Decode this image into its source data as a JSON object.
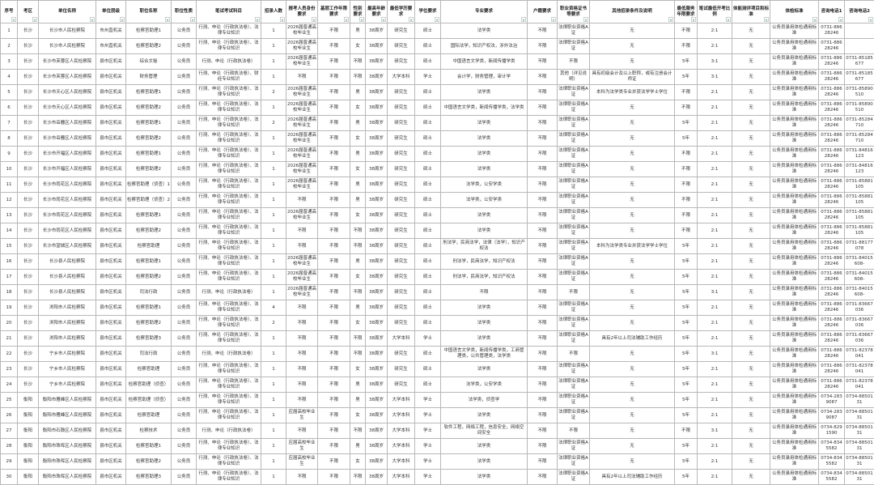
{
  "headers": [
    "序号",
    "考区",
    "单位名称",
    "单位层级",
    "职位名称",
    "职位性质",
    "笔试考试科目",
    "招录人数",
    "报考人员身份要求",
    "基层工作年限要求",
    "性别要求",
    "最高年龄要求",
    "最低学历要求",
    "学位要求",
    "专业要求",
    "户籍要求",
    "职业资格证书等要求",
    "其他招录条件及说明",
    "最低服务年限要求",
    "笔试最低开考比例",
    "体能测评项目和标准",
    "体检标准",
    "咨询电话1",
    "咨询电话2"
  ],
  "filter_icon": "filter-dropdown-arrow",
  "accent_color": "#2e9e5b",
  "rows": [
    [
      "1",
      "长沙",
      "长沙市人民检察院",
      "市州直机关",
      "检察官助理1",
      "公务员",
      "行测、申论（行政执法卷）、法律专业知识",
      "1",
      "2026届普通高校毕业生",
      "不限",
      "男",
      "38周岁",
      "研究生",
      "硕士",
      "法学类",
      "不限",
      "法律职业资格A证",
      "无",
      "不限",
      "2:1",
      "无",
      "公务员录用体检通用标准",
      "0731-88628246",
      ""
    ],
    [
      "2",
      "长沙",
      "长沙市人民检察院",
      "市州直机关",
      "检察官助理2",
      "公务员",
      "行测、申论（行政执法卷）、法律专业知识",
      "1",
      "2026届普通高校毕业生",
      "不限",
      "女",
      "38周岁",
      "研究生",
      "硕士",
      "国际法学，知识产权法，涉外法治",
      "不限",
      "法律职业资格A证",
      "无",
      "不限",
      "2:1",
      "无",
      "公务员录用体检通用标准",
      "0731-88628246",
      ""
    ],
    [
      "3",
      "长沙",
      "长沙市芙蓉区人民检察院",
      "县市区机关",
      "综合文秘",
      "公务员",
      "行测、申论（行政执法卷）",
      "1",
      "2026届普通高校毕业生",
      "不限",
      "不限",
      "38周岁",
      "研究生",
      "硕士",
      "中国语言文学类，新闻传播学类",
      "不限",
      "不限",
      "无",
      "5年",
      "3:1",
      "无",
      "公务员录用体检通用标准",
      "0731-88628246",
      "0731-85185677"
    ],
    [
      "4",
      "长沙",
      "长沙市芙蓉区人民检察院",
      "县市区机关",
      "财务管理",
      "公务员",
      "行测、申论（行政执法卷）、财经专业知识",
      "1",
      "不限",
      "不限",
      "不限",
      "38周岁",
      "大学本科",
      "学士",
      "会计学，财务管理，审计学",
      "不限",
      "其他（详见说明）",
      "具有初级会计及以上职称，或有注册会计师证",
      "5年",
      "3:1",
      "无",
      "公务员录用体检通用标准",
      "0731-88628246",
      "0731-85185677"
    ],
    [
      "5",
      "长沙",
      "长沙市天心区人民检察院",
      "县市区机关",
      "检察官助理1",
      "公务员",
      "行测、申论（行政执法卷）、法律专业知识",
      "2",
      "2026届普通高校毕业生",
      "不限",
      "男",
      "38周岁",
      "研究生",
      "硕士",
      "法学类",
      "不限",
      "法律职业资格A证",
      "本科为法学类专业并获法学学士学位",
      "不限",
      "2:1",
      "无",
      "公务员录用体检通用标准",
      "0731-88628246",
      "0731-85890510"
    ],
    [
      "6",
      "长沙",
      "长沙市天心区人民检察院",
      "县市区机关",
      "检察官助理2",
      "公务员",
      "行测、申论（行政执法卷）、法律专业知识",
      "1",
      "2026届普通高校毕业生",
      "不限",
      "女",
      "38周岁",
      "研究生",
      "硕士",
      "中国语言文学类，新闻传播学类，法学类",
      "不限",
      "法律职业资格A证",
      "无",
      "不限",
      "2:1",
      "无",
      "公务员录用体检通用标准",
      "0731-88628246",
      "0731-85890510"
    ],
    [
      "7",
      "长沙",
      "长沙市岳麓区人民检察院",
      "县市区机关",
      "检察官助理1",
      "公务员",
      "行测、申论（行政执法卷）、法律专业知识",
      "2",
      "2026届普通高校毕业生",
      "不限",
      "男",
      "38周岁",
      "研究生",
      "硕士",
      "法学类",
      "不限",
      "法律职业资格A证",
      "无",
      "5年",
      "2:1",
      "无",
      "公务员录用体检通用标准",
      "0731-88628246",
      "0731-85284710"
    ],
    [
      "8",
      "长沙",
      "长沙市岳麓区人民检察院",
      "县市区机关",
      "检察官助理2",
      "公务员",
      "行测、申论（行政执法卷）、法律专业知识",
      "1",
      "2026届普通高校毕业生",
      "不限",
      "女",
      "38周岁",
      "研究生",
      "硕士",
      "法学类",
      "不限",
      "法律职业资格A证",
      "无",
      "5年",
      "2:1",
      "无",
      "公务员录用体检通用标准",
      "0731-88628246",
      "0731-85284710"
    ],
    [
      "9",
      "长沙",
      "长沙市开福区人民检察院",
      "县市区机关",
      "检察官助理1",
      "公务员",
      "行测、申论（行政执法卷）、法律专业知识",
      "1",
      "2026届普通高校毕业生",
      "不限",
      "男",
      "38周岁",
      "研究生",
      "硕士",
      "法学类",
      "不限",
      "法律职业资格A证",
      "无",
      "不限",
      "2:1",
      "无",
      "公务员录用体检通用标准",
      "0731-88628246",
      "0731-84816123"
    ],
    [
      "10",
      "长沙",
      "长沙市开福区人民检察院",
      "县市区机关",
      "检察官助理2",
      "公务员",
      "行测、申论（行政执法卷）、法律专业知识",
      "1",
      "2026届普通高校毕业生",
      "不限",
      "女",
      "38周岁",
      "研究生",
      "硕士",
      "法学类",
      "不限",
      "法律职业资格A证",
      "无",
      "不限",
      "2:1",
      "无",
      "公务员录用体检通用标准",
      "0731-88628246",
      "0731-84816123"
    ],
    [
      "11",
      "长沙",
      "长沙市雨花区人民检察院",
      "县市区机关",
      "检察官助理（侦查）1",
      "公务员",
      "行测、申论（行政执法卷）、法律专业知识",
      "1",
      "2026届普通高校毕业生",
      "不限",
      "男",
      "38周岁",
      "研究生",
      "硕士",
      "法学类，公安学类",
      "不限",
      "法律职业资格A证",
      "无",
      "不限",
      "2:1",
      "无",
      "公务员录用体检通用标准",
      "0731-88628246",
      "0731-85881105"
    ],
    [
      "12",
      "长沙",
      "长沙市雨花区人民检察院",
      "县市区机关",
      "检察官助理（侦查）2",
      "公务员",
      "行测、申论（行政执法卷）、法律专业知识",
      "1",
      "不限",
      "不限",
      "男",
      "38周岁",
      "研究生",
      "硕士",
      "法学类，公安学类",
      "不限",
      "法律职业资格A证",
      "无",
      "不限",
      "2:1",
      "无",
      "公务员录用体检通用标准",
      "0731-88628246",
      "0731-85881105"
    ],
    [
      "13",
      "长沙",
      "长沙市雨花区人民检察院",
      "县市区机关",
      "检察官助理1",
      "公务员",
      "行测、申论（行政执法卷）、法律专业知识",
      "1",
      "2026届普通高校毕业生",
      "不限",
      "女",
      "38周岁",
      "研究生",
      "硕士",
      "法学类",
      "不限",
      "法律职业资格A证",
      "无",
      "不限",
      "2:1",
      "无",
      "公务员录用体检通用标准",
      "0731-88628246",
      "0731-85881105"
    ],
    [
      "14",
      "长沙",
      "长沙市雨花区人民检察院",
      "县市区机关",
      "检察官助理2",
      "公务员",
      "行测、申论（行政执法卷）、法律专业知识",
      "1",
      "不限",
      "不限",
      "不限",
      "38周岁",
      "研究生",
      "硕士",
      "法学类",
      "不限",
      "法律职业资格A证",
      "无",
      "不限",
      "2:1",
      "无",
      "公务员录用体检通用标准",
      "0731-88628246",
      "0731-85881105"
    ],
    [
      "15",
      "长沙",
      "长沙市望城区人民检察院",
      "县市区机关",
      "检察官助理",
      "公务员",
      "行测、申论（行政执法卷）、法律专业知识",
      "1",
      "不限",
      "不限",
      "不限",
      "38周岁",
      "研究生",
      "硕士",
      "刑法学，民商法学，法律（法学），知识产权法",
      "不限",
      "法律职业资格A证",
      "本科为法学类专业并获法学学士学位",
      "5年",
      "2:1",
      "无",
      "公务员录用体检通用标准",
      "0731-88628246",
      "0731-88177078"
    ],
    [
      "16",
      "长沙",
      "长沙县人民检察院",
      "县市区机关",
      "检察官助理1",
      "公务员",
      "行测、申论（行政执法卷）、法律专业知识",
      "1",
      "2026届普通高校毕业生",
      "不限",
      "男",
      "38周岁",
      "研究生",
      "硕士",
      "刑法学，民商法学，知识产权法",
      "不限",
      "法律职业资格A证",
      "无",
      "5年",
      "2:1",
      "无",
      "公务员录用体检通用标准",
      "0731-88628246",
      "0731-84015608-"
    ],
    [
      "17",
      "长沙",
      "长沙县人民检察院",
      "县市区机关",
      "检察官助理2",
      "公务员",
      "行测、申论（行政执法卷）、法律专业知识",
      "1",
      "2026届普通高校毕业生",
      "不限",
      "女",
      "38周岁",
      "研究生",
      "硕士",
      "刑法学，民商法学，知识产权法",
      "不限",
      "法律职业资格A证",
      "无",
      "5年",
      "2:1",
      "无",
      "公务员录用体检通用标准",
      "0731-88628246",
      "0731-84015608-"
    ],
    [
      "18",
      "长沙",
      "长沙县人民检察院",
      "县市区机关",
      "司法行政",
      "公务员",
      "行测、申论（行政执法卷）",
      "1",
      "2026届普通高校毕业生",
      "不限",
      "不限",
      "38周岁",
      "研究生",
      "硕士",
      "不限",
      "不限",
      "不限",
      "无",
      "5年",
      "3:1",
      "无",
      "公务员录用体检通用标准",
      "0731-88628246",
      "0731-84015608-"
    ],
    [
      "19",
      "长沙",
      "浏阳市人民检察院",
      "县市区机关",
      "检察官助理1",
      "公务员",
      "行测、申论（行政执法卷）、法律专业知识",
      "4",
      "不限",
      "不限",
      "男",
      "38周岁",
      "研究生",
      "硕士",
      "法学类",
      "不限",
      "法律职业资格A证",
      "无",
      "5年",
      "2:1",
      "无",
      "公务员录用体检通用标准",
      "0731-88628246",
      "0731-83667036"
    ],
    [
      "20",
      "长沙",
      "浏阳市人民检察院",
      "县市区机关",
      "检察官助理2",
      "公务员",
      "行测、申论（行政执法卷）、法律专业知识",
      "2",
      "不限",
      "不限",
      "女",
      "38周岁",
      "研究生",
      "硕士",
      "法学类",
      "不限",
      "法律职业资格A证",
      "无",
      "5年",
      "2:1",
      "无",
      "公务员录用体检通用标准",
      "0731-88628246",
      "0731-83667036"
    ],
    [
      "21",
      "长沙",
      "浏阳市人民检察院",
      "县市区机关",
      "检察官助理3",
      "公务员",
      "行测、申论（行政执法卷）、法律专业知识",
      "1",
      "不限",
      "不限",
      "不限",
      "38周岁",
      "大学本科",
      "学士",
      "法学类",
      "不限",
      "法律职业资格A证",
      "具有2年以上司法辅助工作经历",
      "5年",
      "2:1",
      "无",
      "公务员录用体检通用标准",
      "0731-88628246",
      "0731-83667036"
    ],
    [
      "22",
      "长沙",
      "宁乡市人民检察院",
      "县市区机关",
      "司法行政",
      "公务员",
      "行测、申论（行政执法卷）",
      "1",
      "不限",
      "不限",
      "不限",
      "38周岁",
      "研究生",
      "硕士",
      "中国语言文学类，新闻传播学类，工商管理类，公共管理类，法学类",
      "不限",
      "不限",
      "无",
      "5年",
      "3:1",
      "无",
      "公务员录用体检通用标准",
      "0731-88628246",
      "0731-82378041"
    ],
    [
      "23",
      "长沙",
      "宁乡市人民检察院",
      "县市区机关",
      "检察官助理",
      "公务员",
      "行测、申论（行政执法卷）、法律专业知识",
      "1",
      "不限",
      "不限",
      "女",
      "38周岁",
      "研究生",
      "硕士",
      "法学类",
      "不限",
      "法律职业资格A证",
      "无",
      "5年",
      "2:1",
      "无",
      "公务员录用体检通用标准",
      "0731-88628246",
      "0731-82378041"
    ],
    [
      "24",
      "长沙",
      "宁乡市人民检察院",
      "县市区机关",
      "检察官助理（侦查）",
      "公务员",
      "行测、申论（行政执法卷）、法律专业知识",
      "1",
      "不限",
      "不限",
      "男",
      "38周岁",
      "研究生",
      "硕士",
      "法学类，公安学类",
      "不限",
      "法律职业资格A证",
      "无",
      "5年",
      "2:1",
      "无",
      "公务员录用体检通用标准",
      "0731-88628246",
      "0731-82378041"
    ],
    [
      "25",
      "衡阳",
      "衡阳市雁峰区人民检察院",
      "县市区机关",
      "检察官助理（侦查）",
      "公务员",
      "行测、申论（行政执法卷）、法律专业知识",
      "1",
      "不限",
      "不限",
      "男",
      "38周岁",
      "大学本科",
      "学士",
      "法学类，侦查学",
      "不限",
      "法律职业资格A证",
      "无",
      "5年",
      "2:1",
      "无",
      "公务员录用体检通用标准",
      "0734-2839087",
      "0734-8850131"
    ],
    [
      "26",
      "衡阳",
      "衡阳市雁峰区人民检察院",
      "县市区机关",
      "检察官助理",
      "公务员",
      "行测、申论（行政执法卷）、法律专业知识",
      "1",
      "应届高校毕业生",
      "不限",
      "女",
      "38周岁",
      "大学本科",
      "学士",
      "法学类",
      "不限",
      "法律职业资格A证",
      "无",
      "5年",
      "2:1",
      "无",
      "公务员录用体检通用标准",
      "0734-2839087",
      "0734-8850131"
    ],
    [
      "27",
      "衡阳",
      "衡阳市石鼓区人民检察院",
      "县市区机关",
      "检察技术",
      "公务员",
      "行测、申论（行政执法卷）",
      "1",
      "不限",
      "不限",
      "不限",
      "38周岁",
      "大学本科",
      "学士",
      "软件工程，网络工程，信息安全，网络空间安全",
      "不限",
      "不限",
      "无",
      "不限",
      "3:1",
      "无",
      "公务员录用体检通用标准",
      "0734-8291590",
      "0734-8850131"
    ],
    [
      "28",
      "衡阳",
      "衡阳市珠晖区人民检察院",
      "县市区机关",
      "检察官助理1",
      "公务员",
      "行测、申论（行政执法卷）、法律专业知识",
      "1",
      "应届高校毕业生",
      "不限",
      "男",
      "38周岁",
      "大学本科",
      "学士",
      "法学类",
      "不限",
      "法律职业资格A证",
      "无",
      "5年",
      "2:1",
      "无",
      "公务员录用体检通用标准",
      "0734-8345582",
      "0734-8850131"
    ],
    [
      "29",
      "衡阳",
      "衡阳市珠晖区人民检察院",
      "县市区机关",
      "检察官助理2",
      "公务员",
      "行测、申论（行政执法卷）、法律专业知识",
      "1",
      "应届高校毕业生",
      "不限",
      "女",
      "38周岁",
      "大学本科",
      "学士",
      "法学类",
      "不限",
      "法律职业资格A证",
      "无",
      "5年",
      "2:1",
      "无",
      "公务员录用体检通用标准",
      "0734-8345582",
      "0734-8850131"
    ],
    [
      "30",
      "衡阳",
      "衡阳市珠晖区人民检察院",
      "县市区机关",
      "检察官助理3",
      "公务员",
      "行测、申论（行政执法卷）、法律专业知识",
      "1",
      "不限",
      "不限",
      "不限",
      "38周岁",
      "大学本科",
      "学士",
      "法学类",
      "不限",
      "法律职业资格A证",
      "具有2年以上司法辅助工作经历",
      "5年",
      "2:1",
      "无",
      "公务员录用体检通用标准",
      "0734-8345582",
      "0734-8850131"
    ]
  ]
}
